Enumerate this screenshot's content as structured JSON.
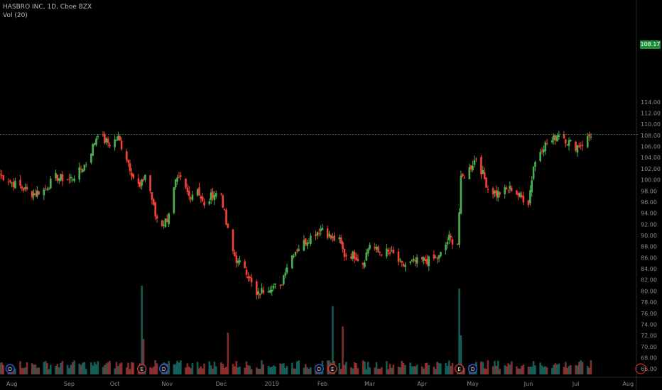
{
  "header": {
    "title": "HASBRO INC, 1D, Cboe BZX",
    "volume_label": "Vol (20)"
  },
  "last_price": "108.17",
  "colors": {
    "up": "#26a69a",
    "down": "#ef5350",
    "up_candle": "#4caf50",
    "down_candle": "#f44336",
    "price_line": "#2e7d32",
    "axis_text": "#8a8a8a",
    "event_ring_dividend": "#2962ff",
    "event_ring_earnings": "#e53935"
  },
  "chart_data": {
    "type": "candlestick",
    "x_range": [
      "2018-07-25",
      "2019-07-26"
    ],
    "y_range": [
      65,
      115
    ],
    "y_ticks": [
      66,
      68,
      70,
      72,
      74,
      76,
      78,
      80,
      82,
      84,
      86,
      88,
      90,
      92,
      94,
      96,
      98,
      100,
      102,
      104,
      106,
      108,
      110,
      112,
      114
    ],
    "x_ticks": [
      {
        "label": "Aug",
        "date": "2018-08-01"
      },
      {
        "label": "Sep",
        "date": "2018-09-04"
      },
      {
        "label": "Oct",
        "date": "2018-10-01"
      },
      {
        "label": "Nov",
        "date": "2018-11-01"
      },
      {
        "label": "Dec",
        "date": "2018-12-03"
      },
      {
        "label": "2019",
        "date": "2019-01-02"
      },
      {
        "label": "Feb",
        "date": "2019-02-01"
      },
      {
        "label": "Mar",
        "date": "2019-03-01"
      },
      {
        "label": "Apr",
        "date": "2019-04-01"
      },
      {
        "label": "May",
        "date": "2019-05-01"
      },
      {
        "label": "Jun",
        "date": "2019-06-03"
      },
      {
        "label": "Jul",
        "date": "2019-07-01"
      },
      {
        "label": "Aug",
        "date": "2019-08-01"
      }
    ],
    "close_path": [
      [
        "2018-07-25",
        101.0
      ],
      [
        "2018-08-01",
        99.5
      ],
      [
        "2018-08-06",
        98.8
      ],
      [
        "2018-08-13",
        97.5
      ],
      [
        "2018-08-20",
        98.2
      ],
      [
        "2018-08-27",
        100.5
      ],
      [
        "2018-09-04",
        100.0
      ],
      [
        "2018-09-10",
        101.5
      ],
      [
        "2018-09-14",
        103.0
      ],
      [
        "2018-09-18",
        106.0
      ],
      [
        "2018-09-21",
        108.5
      ],
      [
        "2018-09-25",
        107.0
      ],
      [
        "2018-09-28",
        106.5
      ],
      [
        "2018-10-03",
        107.5
      ],
      [
        "2018-10-08",
        104.0
      ],
      [
        "2018-10-12",
        100.5
      ],
      [
        "2018-10-16",
        98.5
      ],
      [
        "2018-10-19",
        101.0
      ],
      [
        "2018-10-22",
        98.0
      ],
      [
        "2018-10-25",
        93.5
      ],
      [
        "2018-10-29",
        92.0
      ],
      [
        "2018-11-01",
        93.0
      ],
      [
        "2018-11-06",
        99.5
      ],
      [
        "2018-11-09",
        100.0
      ],
      [
        "2018-11-14",
        97.0
      ],
      [
        "2018-11-19",
        98.5
      ],
      [
        "2018-11-23",
        95.0
      ],
      [
        "2018-11-28",
        97.5
      ],
      [
        "2018-12-03",
        97.5
      ],
      [
        "2018-12-06",
        92.0
      ],
      [
        "2018-12-10",
        87.0
      ],
      [
        "2018-12-13",
        85.0
      ],
      [
        "2018-12-17",
        84.5
      ],
      [
        "2018-12-20",
        82.0
      ],
      [
        "2018-12-24",
        79.0
      ],
      [
        "2018-12-27",
        80.0
      ],
      [
        "2019-01-02",
        81.0
      ],
      [
        "2019-01-07",
        80.5
      ],
      [
        "2019-01-10",
        84.0
      ],
      [
        "2019-01-15",
        87.0
      ],
      [
        "2019-01-22",
        89.0
      ],
      [
        "2019-01-28",
        90.5
      ],
      [
        "2019-02-01",
        91.5
      ],
      [
        "2019-02-06",
        89.5
      ],
      [
        "2019-02-11",
        89.0
      ],
      [
        "2019-02-14",
        86.5
      ],
      [
        "2019-02-20",
        86.5
      ],
      [
        "2019-02-25",
        85.0
      ],
      [
        "2019-03-01",
        88.5
      ],
      [
        "2019-03-06",
        87.0
      ],
      [
        "2019-03-11",
        87.0
      ],
      [
        "2019-03-15",
        86.5
      ],
      [
        "2019-03-20",
        84.5
      ],
      [
        "2019-03-25",
        85.0
      ],
      [
        "2019-04-01",
        85.5
      ],
      [
        "2019-04-05",
        85.5
      ],
      [
        "2019-04-11",
        86.0
      ],
      [
        "2019-04-17",
        89.5
      ],
      [
        "2019-04-22",
        88.5
      ],
      [
        "2019-04-24",
        100.0
      ],
      [
        "2019-04-29",
        102.0
      ],
      [
        "2019-05-03",
        104.0
      ],
      [
        "2019-05-07",
        101.0
      ],
      [
        "2019-05-10",
        98.5
      ],
      [
        "2019-05-15",
        97.5
      ],
      [
        "2019-05-20",
        98.0
      ],
      [
        "2019-05-24",
        98.5
      ],
      [
        "2019-05-29",
        97.0
      ],
      [
        "2019-06-03",
        96.0
      ],
      [
        "2019-06-06",
        102.5
      ],
      [
        "2019-06-11",
        106.0
      ],
      [
        "2019-06-17",
        107.0
      ],
      [
        "2019-06-21",
        108.5
      ],
      [
        "2019-06-26",
        107.0
      ],
      [
        "2019-07-01",
        106.0
      ],
      [
        "2019-07-05",
        106.5
      ],
      [
        "2019-07-10",
        108.17
      ]
    ],
    "volume_scale_max": 100,
    "volume_spikes": [
      {
        "date": "2018-10-17",
        "value": 100
      },
      {
        "date": "2018-10-18",
        "value": 40
      },
      {
        "date": "2018-12-07",
        "value": 47
      },
      {
        "date": "2019-02-07",
        "value": 77
      },
      {
        "date": "2019-02-13",
        "value": 54
      },
      {
        "date": "2019-04-23",
        "value": 97
      },
      {
        "date": "2019-04-24",
        "value": 44
      }
    ],
    "events": [
      {
        "date": "2018-07-31",
        "type": "D"
      },
      {
        "date": "2018-10-17",
        "type": "E"
      },
      {
        "date": "2018-10-30",
        "type": "D"
      },
      {
        "date": "2019-01-30",
        "type": "D"
      },
      {
        "date": "2019-02-07",
        "type": "E"
      },
      {
        "date": "2019-04-23",
        "type": "E"
      },
      {
        "date": "2019-05-01",
        "type": "D"
      }
    ]
  }
}
